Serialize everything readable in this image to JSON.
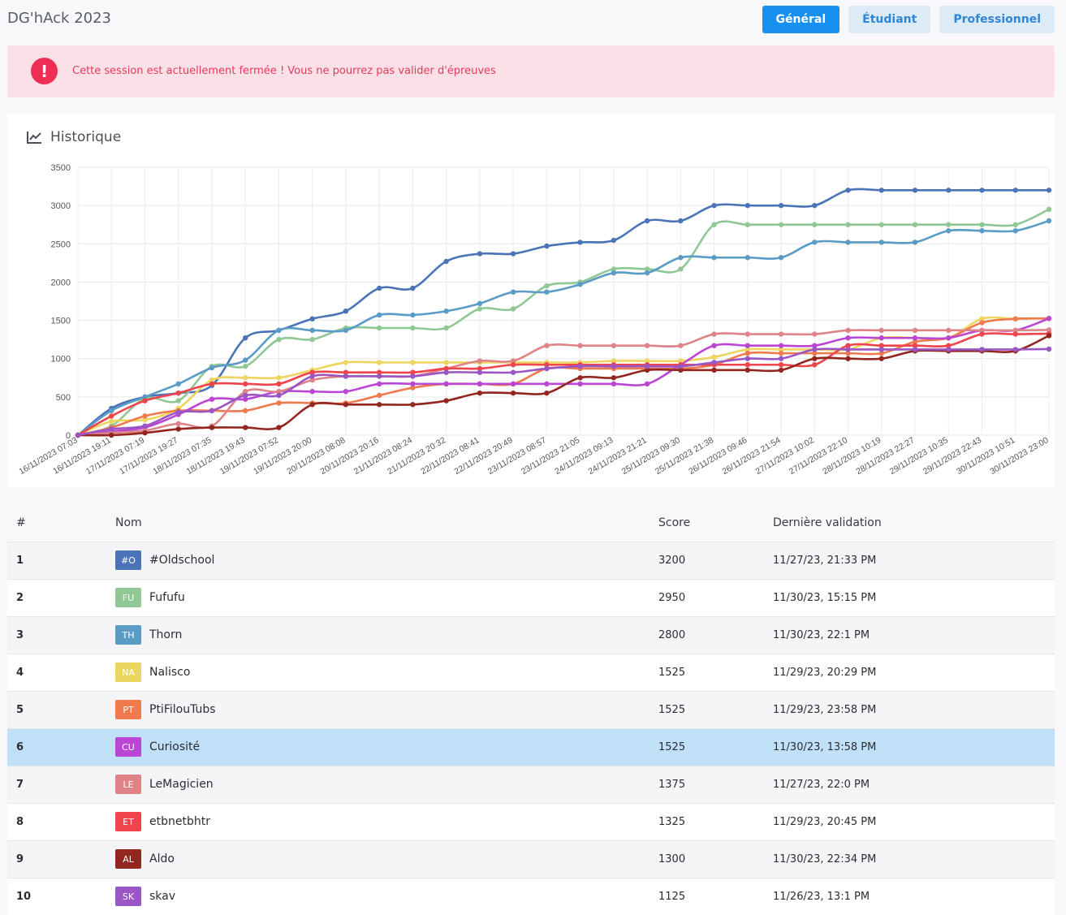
{
  "header": {
    "title": "DG'hAck 2023",
    "tabs": [
      {
        "label": "Général",
        "active": true
      },
      {
        "label": "Étudiant",
        "active": false
      },
      {
        "label": "Professionnel",
        "active": false
      }
    ]
  },
  "alert": {
    "icon": "exclamation-circle-icon",
    "text": "Cette session est actuellement fermée ! Vous ne pourrez pas valider d'épreuves"
  },
  "history": {
    "title": "Historique",
    "icon": "line-chart-icon"
  },
  "chart_data": {
    "type": "line",
    "title": "Historique",
    "ylim": [
      0,
      3500
    ],
    "yticks": [
      0,
      500,
      1000,
      1500,
      2000,
      2500,
      3000,
      3500
    ],
    "grid": true,
    "categories": [
      "16/11/2023 07:03",
      "16/11/2023 19:11",
      "17/11/2023 07:19",
      "17/11/2023 19:27",
      "18/11/2023 07:35",
      "18/11/2023 19:43",
      "19/11/2023 07:52",
      "19/11/2023 20:00",
      "20/11/2023 08:08",
      "20/11/2023 20:16",
      "21/11/2023 08:24",
      "21/11/2023 20:32",
      "22/11/2023 08:41",
      "22/11/2023 20:49",
      "23/11/2023 08:57",
      "23/11/2023 21:05",
      "24/11/2023 09:13",
      "24/11/2023 21:21",
      "25/11/2023 09:30",
      "25/11/2023 21:38",
      "26/11/2023 09:46",
      "26/11/2023 21:54",
      "27/11/2023 10:02",
      "27/11/2023 22:10",
      "28/11/2023 10:19",
      "28/11/2023 22:27",
      "29/11/2023 10:35",
      "29/11/2023 22:43",
      "30/11/2023 10:51",
      "30/11/2023 23:00"
    ],
    "series": [
      {
        "name": "#Oldschool",
        "color": "#4b74b8",
        "values": [
          0,
          350,
          500,
          550,
          650,
          1270,
          1370,
          1520,
          1620,
          1920,
          1920,
          2270,
          2370,
          2370,
          2470,
          2520,
          2545,
          2800,
          2800,
          3000,
          3000,
          3000,
          3000,
          3200,
          3200,
          3200,
          3200,
          3200,
          3200,
          3200
        ]
      },
      {
        "name": "Fufufu",
        "color": "#8fc795",
        "values": [
          0,
          120,
          480,
          450,
          900,
          900,
          1250,
          1250,
          1400,
          1400,
          1400,
          1400,
          1650,
          1650,
          1950,
          2000,
          2170,
          2170,
          2170,
          2750,
          2750,
          2750,
          2750,
          2750,
          2750,
          2750,
          2750,
          2750,
          2750,
          2950
        ]
      },
      {
        "name": "Thorn",
        "color": "#5a9cc6",
        "values": [
          0,
          320,
          500,
          670,
          880,
          980,
          1370,
          1370,
          1370,
          1570,
          1570,
          1620,
          1720,
          1870,
          1870,
          1970,
          2120,
          2120,
          2320,
          2320,
          2320,
          2320,
          2520,
          2520,
          2520,
          2520,
          2670,
          2670,
          2670,
          2800
        ]
      },
      {
        "name": "Nalisco",
        "color": "#ecd660",
        "values": [
          0,
          180,
          200,
          350,
          720,
          750,
          750,
          850,
          950,
          950,
          950,
          950,
          950,
          950,
          950,
          950,
          970,
          970,
          970,
          1020,
          1120,
          1120,
          1120,
          1120,
          1270,
          1270,
          1270,
          1520,
          1520,
          1525
        ]
      },
      {
        "name": "PtiFilouTubs",
        "color": "#ee7a4e",
        "values": [
          0,
          100,
          250,
          320,
          320,
          320,
          420,
          420,
          420,
          520,
          620,
          670,
          670,
          670,
          870,
          870,
          870,
          870,
          870,
          920,
          1070,
          1070,
          1070,
          1070,
          1070,
          1220,
          1270,
          1470,
          1520,
          1525
        ]
      },
      {
        "name": "Curiosité",
        "color": "#bb46d3",
        "values": [
          0,
          50,
          100,
          270,
          470,
          470,
          570,
          570,
          570,
          670,
          670,
          670,
          670,
          670,
          670,
          670,
          670,
          670,
          920,
          1170,
          1170,
          1170,
          1170,
          1270,
          1270,
          1270,
          1270,
          1370,
          1370,
          1525
        ]
      },
      {
        "name": "LeMagicien",
        "color": "#de8488",
        "values": [
          0,
          30,
          60,
          150,
          120,
          570,
          570,
          720,
          770,
          770,
          770,
          870,
          970,
          970,
          1170,
          1170,
          1170,
          1170,
          1170,
          1320,
          1320,
          1320,
          1320,
          1370,
          1370,
          1370,
          1370,
          1370,
          1370,
          1375
        ]
      },
      {
        "name": "etbnetbhtr",
        "color": "#ef444b",
        "values": [
          0,
          250,
          450,
          550,
          670,
          670,
          670,
          820,
          820,
          820,
          820,
          870,
          870,
          920,
          920,
          920,
          920,
          920,
          920,
          920,
          920,
          920,
          920,
          1170,
          1170,
          1170,
          1170,
          1320,
          1320,
          1325
        ]
      },
      {
        "name": "Aldo",
        "color": "#93261e",
        "values": [
          0,
          0,
          30,
          80,
          100,
          100,
          100,
          400,
          400,
          400,
          400,
          450,
          550,
          550,
          550,
          750,
          750,
          850,
          850,
          850,
          850,
          850,
          1000,
          1000,
          1000,
          1100,
          1100,
          1100,
          1100,
          1300
        ]
      },
      {
        "name": "skav",
        "color": "#9a56c4",
        "values": [
          0,
          80,
          120,
          300,
          320,
          520,
          520,
          770,
          770,
          770,
          770,
          820,
          820,
          820,
          870,
          900,
          900,
          900,
          900,
          950,
          1000,
          1000,
          1120,
          1120,
          1120,
          1120,
          1120,
          1120,
          1120,
          1125
        ]
      }
    ]
  },
  "table": {
    "headers": {
      "rank": "#",
      "name": "Nom",
      "score": "Score",
      "last": "Dernière validation"
    },
    "rows": [
      {
        "rank": "1",
        "initials": "#O",
        "color": "#4b74b8",
        "name": "#Oldschool",
        "score": "3200",
        "last": "11/27/23, 21:33 PM"
      },
      {
        "rank": "2",
        "initials": "FU",
        "color": "#8fc795",
        "name": "Fufufu",
        "score": "2950",
        "last": "11/30/23, 15:15 PM"
      },
      {
        "rank": "3",
        "initials": "TH",
        "color": "#5a9cc6",
        "name": "Thorn",
        "score": "2800",
        "last": "11/30/23, 22:1 PM"
      },
      {
        "rank": "4",
        "initials": "NA",
        "color": "#ecd660",
        "name": "Nalisco",
        "score": "1525",
        "last": "11/29/23, 20:29 PM"
      },
      {
        "rank": "5",
        "initials": "PT",
        "color": "#ee7a4e",
        "name": "PtiFilouTubs",
        "score": "1525",
        "last": "11/29/23, 23:58 PM"
      },
      {
        "rank": "6",
        "initials": "CU",
        "color": "#bb46d3",
        "name": "Curiosité",
        "score": "1525",
        "last": "11/30/23, 13:58 PM",
        "highlight": true
      },
      {
        "rank": "7",
        "initials": "LE",
        "color": "#de8488",
        "name": "LeMagicien",
        "score": "1375",
        "last": "11/27/23, 22:0 PM"
      },
      {
        "rank": "8",
        "initials": "ET",
        "color": "#ef444b",
        "name": "etbnetbhtr",
        "score": "1325",
        "last": "11/29/23, 20:45 PM"
      },
      {
        "rank": "9",
        "initials": "AL",
        "color": "#93261e",
        "name": "Aldo",
        "score": "1300",
        "last": "11/30/23, 22:34 PM"
      },
      {
        "rank": "10",
        "initials": "SK",
        "color": "#9a56c4",
        "name": "skav",
        "score": "1125",
        "last": "11/26/23, 13:1 PM"
      }
    ]
  }
}
